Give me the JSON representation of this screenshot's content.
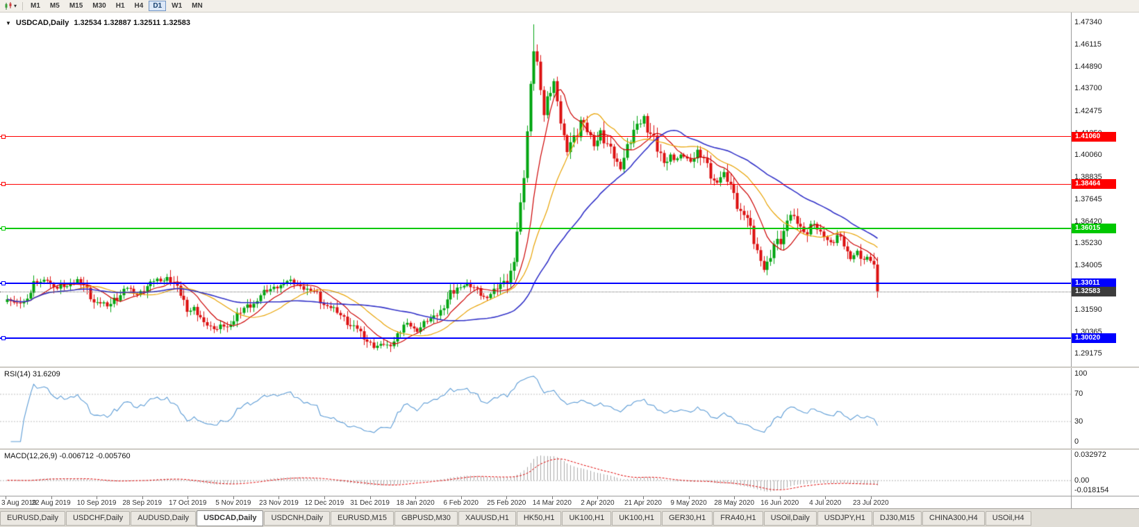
{
  "toolbar": {
    "timeframes": [
      "M1",
      "M5",
      "M15",
      "M30",
      "H1",
      "H4",
      "D1",
      "W1",
      "MN"
    ],
    "active_timeframe": "D1"
  },
  "chart_header": {
    "collapse_icon": "▼",
    "symbol": "USDCAD,Daily",
    "ohlc": "1.32534 1.32887 1.32511 1.32583"
  },
  "chart_data": {
    "type": "candlestick",
    "title": "USDCAD,Daily",
    "symbol": "USDCAD",
    "timeframe": "Daily",
    "num_candles": 262,
    "price_range": {
      "min": 1.2846,
      "max": 1.4786
    },
    "up_color": "#00A510",
    "down_color": "#DC1010",
    "x_labels": [
      "3 Aug 2019",
      "22 Aug 2019",
      "10 Sep 2019",
      "28 Sep 2019",
      "17 Oct 2019",
      "5 Nov 2019",
      "23 Nov 2019",
      "12 Dec 2019",
      "31 Dec 2019",
      "18 Jan 2020",
      "6 Feb 2020",
      "25 Feb 2020",
      "14 Mar 2020",
      "2 Apr 2020",
      "21 Apr 2020",
      "9 May 2020",
      "28 May 2020",
      "16 Jun 2020",
      "4 Jul 2020",
      "23 Jul 2020"
    ],
    "y_axis_labels": [
      "1.47340",
      "1.46115",
      "1.44890",
      "1.43700",
      "1.42475",
      "1.41250",
      "1.40060",
      "1.38835",
      "1.37645",
      "1.36420",
      "1.35230",
      "1.34005",
      "1.31590",
      "1.30365",
      "1.29175"
    ],
    "close_anchors": [
      [
        0,
        1.3215
      ],
      [
        3,
        1.3185
      ],
      [
        6,
        1.3235
      ],
      [
        9,
        1.33
      ],
      [
        12,
        1.333
      ],
      [
        15,
        1.327
      ],
      [
        18,
        1.33
      ],
      [
        21,
        1.332
      ],
      [
        24,
        1.326
      ],
      [
        27,
        1.32
      ],
      [
        30,
        1.3175
      ],
      [
        33,
        1.323
      ],
      [
        36,
        1.327
      ],
      [
        39,
        1.3245
      ],
      [
        42,
        1.328
      ],
      [
        45,
        1.332
      ],
      [
        48,
        1.333
      ],
      [
        51,
        1.327
      ],
      [
        54,
        1.318
      ],
      [
        57,
        1.312
      ],
      [
        60,
        1.308
      ],
      [
        63,
        1.305
      ],
      [
        66,
        1.307
      ],
      [
        69,
        1.313
      ],
      [
        72,
        1.317
      ],
      [
        75,
        1.322
      ],
      [
        78,
        1.326
      ],
      [
        81,
        1.329
      ],
      [
        84,
        1.331
      ],
      [
        87,
        1.33
      ],
      [
        90,
        1.327
      ],
      [
        93,
        1.324
      ],
      [
        96,
        1.318
      ],
      [
        99,
        1.314
      ],
      [
        102,
        1.31
      ],
      [
        105,
        1.304
      ],
      [
        108,
        1.299
      ],
      [
        111,
        1.2955
      ],
      [
        114,
        1.2965
      ],
      [
        117,
        1.302
      ],
      [
        120,
        1.308
      ],
      [
        123,
        1.305
      ],
      [
        126,
        1.309
      ],
      [
        129,
        1.314
      ],
      [
        132,
        1.32
      ],
      [
        135,
        1.328
      ],
      [
        138,
        1.33
      ],
      [
        141,
        1.3255
      ],
      [
        144,
        1.323
      ],
      [
        147,
        1.327
      ],
      [
        150,
        1.333
      ],
      [
        152,
        1.343
      ],
      [
        154,
        1.37
      ],
      [
        155,
        1.39
      ],
      [
        156,
        1.415
      ],
      [
        157,
        1.44
      ],
      [
        158,
        1.46
      ],
      [
        159,
        1.45
      ],
      [
        160,
        1.435
      ],
      [
        161,
        1.42
      ],
      [
        162,
        1.43
      ],
      [
        163,
        1.438
      ],
      [
        164,
        1.443
      ],
      [
        165,
        1.43
      ],
      [
        166,
        1.418
      ],
      [
        167,
        1.408
      ],
      [
        168,
        1.402
      ],
      [
        170,
        1.41
      ],
      [
        172,
        1.42
      ],
      [
        174,
        1.412
      ],
      [
        176,
        1.406
      ],
      [
        178,
        1.414
      ],
      [
        180,
        1.406
      ],
      [
        182,
        1.398
      ],
      [
        184,
        1.395
      ],
      [
        186,
        1.405
      ],
      [
        188,
        1.412
      ],
      [
        190,
        1.418
      ],
      [
        191,
        1.422
      ],
      [
        193,
        1.412
      ],
      [
        195,
        1.403
      ],
      [
        197,
        1.396
      ],
      [
        199,
        1.401
      ],
      [
        201,
        1.398
      ],
      [
        203,
        1.4
      ],
      [
        205,
        1.398
      ],
      [
        207,
        1.403
      ],
      [
        209,
        1.396
      ],
      [
        211,
        1.39
      ],
      [
        213,
        1.386
      ],
      [
        215,
        1.39
      ],
      [
        217,
        1.382
      ],
      [
        219,
        1.375
      ],
      [
        221,
        1.368
      ],
      [
        223,
        1.358
      ],
      [
        225,
        1.348
      ],
      [
        227,
        1.339
      ],
      [
        229,
        1.343
      ],
      [
        231,
        1.353
      ],
      [
        233,
        1.36
      ],
      [
        235,
        1.368
      ],
      [
        237,
        1.362
      ],
      [
        239,
        1.358
      ],
      [
        241,
        1.363
      ],
      [
        243,
        1.359
      ],
      [
        245,
        1.356
      ],
      [
        247,
        1.353
      ],
      [
        249,
        1.356
      ],
      [
        251,
        1.35
      ],
      [
        253,
        1.345
      ],
      [
        255,
        1.348
      ],
      [
        257,
        1.342
      ],
      [
        258,
        1.344
      ],
      [
        259,
        1.3425
      ],
      [
        260,
        1.3405
      ],
      [
        261,
        1.32583
      ]
    ],
    "moving_averages": [
      {
        "period": 10,
        "color": "#CC0000"
      },
      {
        "period": 21,
        "color": "#E8A200"
      },
      {
        "period": 45,
        "color": "#3232C8"
      }
    ],
    "horizontal_levels": [
      {
        "price": 1.4106,
        "label": "1.41060",
        "color": "#FF0000",
        "width": 1
      },
      {
        "price": 1.38464,
        "label": "1.38464",
        "color": "#FF0000",
        "width": 1
      },
      {
        "price": 1.36015,
        "label": "1.36015",
        "color": "#00C800",
        "width": 2
      },
      {
        "price": 1.33011,
        "label": "1.33011",
        "color": "#0000FF",
        "width": 2
      },
      {
        "price": 1.3002,
        "label": "1.30020",
        "color": "#0000FF",
        "width": 2
      }
    ],
    "current_price": {
      "value": 1.32583,
      "label": "1.32583",
      "tag_color": "#3C3C3C"
    }
  },
  "rsi_panel": {
    "header": "RSI(14) 31.6209",
    "period": 14,
    "value": "31.6209",
    "line_color": "#5B9BD5",
    "levels": [
      70,
      30
    ],
    "scale_labels": [
      {
        "v": 100,
        "t": "100"
      },
      {
        "v": 70,
        "t": "70"
      },
      {
        "v": 30,
        "t": "30"
      },
      {
        "v": 0,
        "t": "0"
      }
    ]
  },
  "macd_panel": {
    "header": "MACD(12,26,9) -0.006712 -0.005760",
    "params": "12,26,9",
    "values": "-0.006712 -0.005760",
    "histogram_color": "#A8A8A8",
    "signal_color": "#E00000",
    "scale_labels": [
      {
        "pos": "top",
        "t": "0.032972"
      },
      {
        "pos": "zero",
        "t": "0.00"
      },
      {
        "pos": "bottom",
        "t": "-0.018154"
      }
    ]
  },
  "bottom_tabs": {
    "active": "USDCAD,Daily",
    "tabs": [
      "EURUSD,Daily",
      "USDCHF,Daily",
      "AUDUSD,Daily",
      "USDCAD,Daily",
      "USDCNH,Daily",
      "EURUSD,M15",
      "GBPUSD,M30",
      "XAUUSD,H1",
      "HK50,H1",
      "UK100,H1",
      "UK100,H1",
      "GER30,H1",
      "FRA40,H1",
      "USOil,Daily",
      "USDJPY,H1",
      "DJ30,M15",
      "CHINA300,H4",
      "USOil,H4"
    ]
  }
}
